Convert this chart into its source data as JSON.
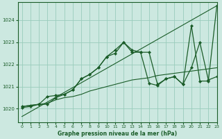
{
  "title": "Graphe pression niveau de la mer (hPa)",
  "background_color": "#cce8e0",
  "grid_color": "#99ccbb",
  "line_color": "#1a5c28",
  "xlim": [
    -0.5,
    23
  ],
  "ylim": [
    1019.4,
    1024.8
  ],
  "yticks": [
    1020,
    1021,
    1022,
    1023,
    1024
  ],
  "xticks": [
    0,
    1,
    2,
    3,
    4,
    5,
    6,
    7,
    8,
    9,
    10,
    11,
    12,
    13,
    14,
    15,
    16,
    17,
    18,
    19,
    20,
    21,
    22,
    23
  ],
  "series": [
    {
      "x": [
        0,
        23
      ],
      "y": [
        1019.65,
        1024.65
      ],
      "has_markers": false,
      "linewidth": 0.8
    },
    {
      "x": [
        0,
        1,
        2,
        3,
        4,
        5,
        6,
        7,
        8,
        9,
        10,
        11,
        12,
        13,
        14,
        15,
        16,
        17,
        18,
        19,
        20,
        21,
        22,
        23
      ],
      "y": [
        1020.1,
        1020.15,
        1020.2,
        1020.25,
        1020.4,
        1020.5,
        1020.55,
        1020.65,
        1020.8,
        1020.9,
        1021.0,
        1021.1,
        1021.2,
        1021.3,
        1021.35,
        1021.4,
        1021.5,
        1021.55,
        1021.6,
        1021.65,
        1021.7,
        1021.75,
        1021.8,
        1021.85
      ],
      "has_markers": false,
      "linewidth": 0.8
    },
    {
      "x": [
        0,
        1,
        2,
        3,
        4,
        5,
        6,
        7,
        8,
        9,
        10,
        11,
        12,
        13,
        14,
        15,
        16,
        17,
        18,
        19,
        20,
        21,
        22,
        23
      ],
      "y": [
        1020.1,
        1020.15,
        1020.2,
        1020.55,
        1020.6,
        1020.65,
        1020.85,
        1021.35,
        1021.55,
        1021.85,
        1022.35,
        1022.5,
        1023.0,
        1022.55,
        1022.55,
        1021.15,
        1021.05,
        1021.35,
        1021.45,
        1021.1,
        1021.85,
        1023.0,
        1021.3,
        1021.45
      ],
      "has_markers": true,
      "linewidth": 0.9
    },
    {
      "x": [
        0,
        1,
        2,
        3,
        4,
        5,
        6,
        7,
        8,
        9,
        10,
        11,
        12,
        13,
        14,
        15,
        16,
        17,
        18,
        19,
        20,
        21,
        22,
        23
      ],
      "y": [
        1020.05,
        1020.1,
        1020.2,
        1020.2,
        1020.5,
        1020.65,
        1020.85,
        1021.35,
        1021.55,
        1021.85,
        1022.35,
        1022.65,
        1023.0,
        1022.65,
        1022.55,
        1022.55,
        1021.1,
        1021.35,
        1021.45,
        1021.1,
        1023.75,
        1021.25,
        1021.25,
        1024.65
      ],
      "has_markers": true,
      "linewidth": 0.9
    }
  ]
}
